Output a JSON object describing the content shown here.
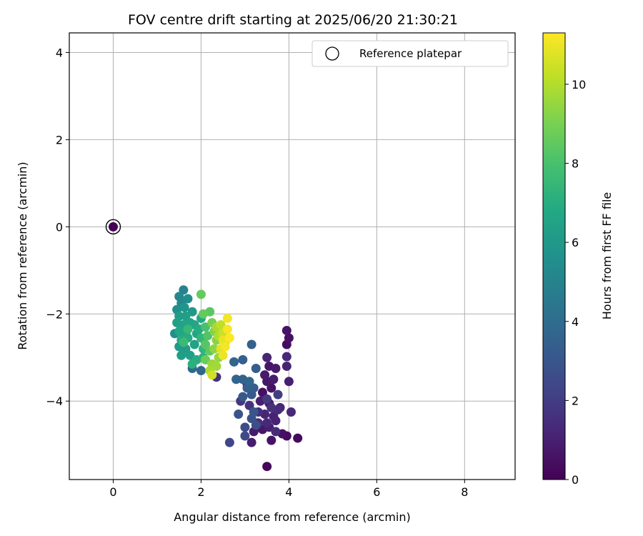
{
  "chart_data": {
    "type": "scatter",
    "title": "FOV centre drift starting at 2025/06/20 21:30:21",
    "xlabel": "Angular distance from reference (arcmin)",
    "ylabel": "Rotation from reference (arcmin)",
    "xlim": [
      -1.0,
      9.15
    ],
    "ylim": [
      -5.8,
      4.45
    ],
    "xticks": [
      0,
      2,
      4,
      6,
      8
    ],
    "xtick_labels": [
      "0",
      "2",
      "4",
      "6",
      "8"
    ],
    "yticks": [
      4,
      2,
      0,
      -2,
      -4
    ],
    "ytick_labels": [
      "4",
      "2",
      "0",
      "−2",
      "−4"
    ],
    "grid": true,
    "colormap": "viridis",
    "colorbar": {
      "label": "Hours from first FF file",
      "min": 0,
      "max": 11.3,
      "ticks": [
        0,
        2,
        4,
        6,
        8,
        10
      ],
      "tick_labels": [
        "0",
        "2",
        "4",
        "6",
        "8",
        "10"
      ]
    },
    "legend": {
      "position": "top-right",
      "entries": [
        "Reference platepar"
      ]
    },
    "reference_point": {
      "x": 0,
      "y": 0,
      "hours": 0
    },
    "series": [
      {
        "points": [
          [
            3.5,
            -5.5,
            0.2
          ],
          [
            4.2,
            -4.85,
            0.3
          ],
          [
            3.95,
            -4.8,
            0.4
          ],
          [
            3.85,
            -4.75,
            0.5
          ],
          [
            3.6,
            -4.9,
            0.6
          ],
          [
            3.4,
            -4.65,
            0.7
          ],
          [
            3.2,
            -4.7,
            0.8
          ],
          [
            3.15,
            -4.95,
            0.9
          ],
          [
            3.55,
            -4.6,
            1.0
          ],
          [
            3.7,
            -4.45,
            1.1
          ],
          [
            3.45,
            -4.3,
            1.2
          ],
          [
            4.05,
            -4.25,
            1.3
          ],
          [
            3.75,
            -4.2,
            1.4
          ],
          [
            3.3,
            -4.25,
            1.5
          ],
          [
            3.6,
            -4.15,
            1.6
          ],
          [
            3.1,
            -4.1,
            1.7
          ],
          [
            2.9,
            -4.0,
            1.8
          ],
          [
            3.5,
            -3.95,
            1.9
          ],
          [
            3.75,
            -3.85,
            2.0
          ],
          [
            3.4,
            -3.8,
            0.5
          ],
          [
            3.6,
            -3.7,
            0.6
          ],
          [
            3.5,
            -3.55,
            0.7
          ],
          [
            3.45,
            -3.4,
            0.8
          ],
          [
            3.65,
            -3.5,
            0.9
          ],
          [
            4.0,
            -3.55,
            1.0
          ],
          [
            3.95,
            -3.2,
            1.1
          ],
          [
            3.5,
            -3.0,
            1.2
          ],
          [
            3.95,
            -2.98,
            1.3
          ],
          [
            3.95,
            -2.7,
            0.4
          ],
          [
            4.0,
            -2.55,
            0.5
          ],
          [
            3.95,
            -2.38,
            0.6
          ],
          [
            3.55,
            -3.2,
            0.7
          ],
          [
            3.7,
            -3.25,
            0.8
          ],
          [
            3.55,
            -4.05,
            0.9
          ],
          [
            3.35,
            -4.0,
            1.0
          ],
          [
            3.65,
            -4.35,
            1.1
          ],
          [
            3.8,
            -4.15,
            1.2
          ],
          [
            3.5,
            -4.5,
            1.3
          ],
          [
            3.7,
            -4.7,
            1.4
          ],
          [
            3.3,
            -4.5,
            1.5
          ],
          [
            2.35,
            -3.45,
            1.6
          ],
          [
            3.05,
            -3.62,
            1.7
          ],
          [
            2.65,
            -4.95,
            2.4
          ],
          [
            3.0,
            -4.8,
            2.5
          ],
          [
            3.0,
            -4.6,
            2.6
          ],
          [
            3.25,
            -4.55,
            2.7
          ],
          [
            3.15,
            -4.4,
            2.8
          ],
          [
            2.85,
            -4.3,
            2.9
          ],
          [
            3.2,
            -4.25,
            3.0
          ],
          [
            2.95,
            -3.9,
            3.1
          ],
          [
            3.15,
            -3.85,
            3.2
          ],
          [
            3.2,
            -3.7,
            3.3
          ],
          [
            3.05,
            -3.7,
            3.4
          ],
          [
            2.95,
            -3.5,
            3.5
          ],
          [
            2.8,
            -3.5,
            3.6
          ],
          [
            3.1,
            -3.55,
            3.7
          ],
          [
            3.25,
            -3.25,
            3.3
          ],
          [
            2.95,
            -3.05,
            3.4
          ],
          [
            3.15,
            -2.7,
            3.5
          ],
          [
            2.75,
            -3.1,
            3.6
          ],
          [
            2.0,
            -3.3,
            3.7
          ],
          [
            1.8,
            -3.25,
            3.8
          ],
          [
            1.4,
            -2.45,
            5.5
          ],
          [
            1.6,
            -1.45,
            5.0
          ],
          [
            1.5,
            -1.6,
            5.2
          ],
          [
            1.55,
            -1.75,
            5.3
          ],
          [
            1.7,
            -1.65,
            5.5
          ],
          [
            1.45,
            -1.9,
            5.6
          ],
          [
            1.62,
            -1.85,
            5.8
          ],
          [
            1.8,
            -1.95,
            6.0
          ],
          [
            1.5,
            -2.05,
            6.2
          ],
          [
            1.65,
            -2.05,
            6.3
          ],
          [
            1.45,
            -2.2,
            6.4
          ],
          [
            1.6,
            -2.25,
            6.5
          ],
          [
            1.75,
            -2.2,
            6.6
          ],
          [
            1.5,
            -2.4,
            6.7
          ],
          [
            1.65,
            -2.45,
            6.8
          ],
          [
            1.55,
            -2.6,
            6.9
          ],
          [
            1.7,
            -2.55,
            7.0
          ],
          [
            1.5,
            -2.75,
            6.1
          ],
          [
            1.65,
            -2.8,
            6.2
          ],
          [
            1.55,
            -2.95,
            6.3
          ],
          [
            1.75,
            -2.95,
            6.4
          ],
          [
            1.85,
            -2.7,
            6.5
          ],
          [
            1.9,
            -2.45,
            6.6
          ],
          [
            1.85,
            -2.25,
            6.7
          ],
          [
            2.0,
            -2.1,
            6.8
          ],
          [
            1.95,
            -2.35,
            6.9
          ],
          [
            1.9,
            -3.05,
            7.0
          ],
          [
            1.8,
            -3.15,
            7.1
          ],
          [
            2.05,
            -3.0,
            7.2
          ],
          [
            2.05,
            -2.8,
            7.3
          ],
          [
            2.0,
            -2.55,
            7.4
          ],
          [
            1.7,
            -2.35,
            7.5
          ],
          [
            1.6,
            -2.65,
            7.6
          ],
          [
            2.1,
            -2.3,
            8.0
          ],
          [
            2.15,
            -2.5,
            8.2
          ],
          [
            2.1,
            -2.7,
            8.3
          ],
          [
            2.2,
            -2.85,
            8.5
          ],
          [
            2.1,
            -3.05,
            8.7
          ],
          [
            2.2,
            -1.95,
            8.4
          ],
          [
            2.05,
            -2.0,
            8.6
          ],
          [
            2.0,
            -1.55,
            8.6
          ],
          [
            2.25,
            -2.2,
            9.0
          ],
          [
            2.3,
            -2.4,
            9.2
          ],
          [
            2.35,
            -2.6,
            9.3
          ],
          [
            2.3,
            -2.8,
            9.4
          ],
          [
            2.4,
            -3.0,
            9.5
          ],
          [
            2.25,
            -3.15,
            9.6
          ],
          [
            2.35,
            -3.2,
            9.7
          ],
          [
            2.2,
            -3.3,
            9.8
          ],
          [
            2.25,
            -3.4,
            10.5
          ],
          [
            2.45,
            -2.25,
            10.2
          ],
          [
            2.5,
            -2.45,
            10.4
          ],
          [
            2.55,
            -2.65,
            10.6
          ],
          [
            2.45,
            -2.8,
            10.8
          ],
          [
            2.5,
            -2.95,
            11.0
          ],
          [
            2.6,
            -2.1,
            11.1
          ],
          [
            2.6,
            -2.35,
            11.2
          ],
          [
            2.65,
            -2.55,
            11.3
          ],
          [
            2.55,
            -2.75,
            11.2
          ],
          [
            2.4,
            -2.5,
            10.0
          ],
          [
            2.35,
            -2.3,
            9.8
          ],
          [
            2.5,
            -2.6,
            10.9
          ]
        ]
      }
    ]
  }
}
